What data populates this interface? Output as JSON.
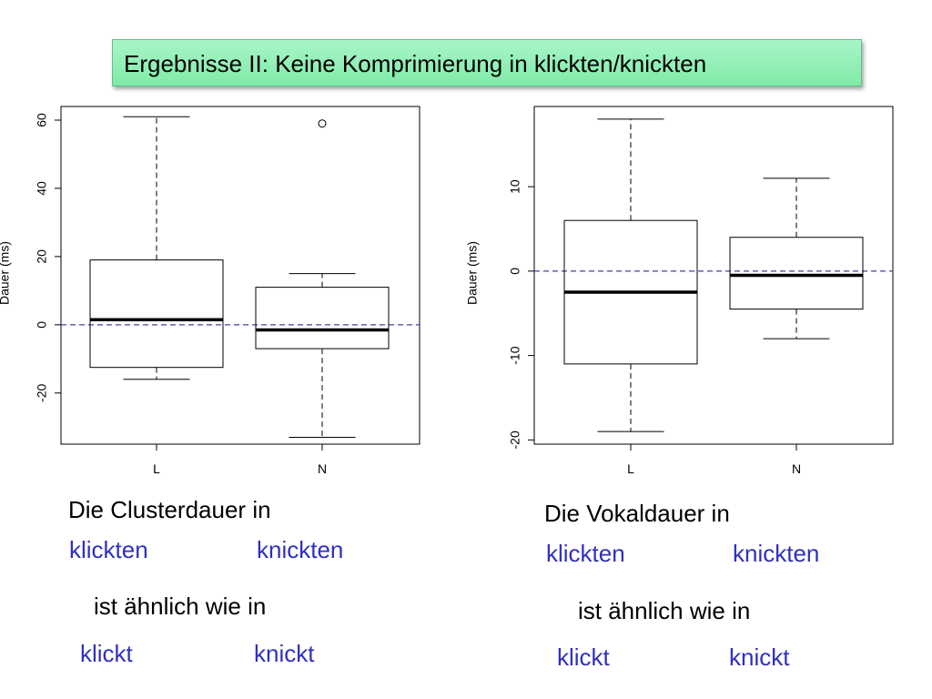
{
  "slide": {
    "title": "Ergebnisse II: Keine Komprimierung in klickten/knickten"
  },
  "colors": {
    "title_bg": "#90eeb0",
    "reference_line": "#4040a0",
    "caption_blue": "#3030c0"
  },
  "chart_data": [
    {
      "type": "box",
      "ylabel": "Dauer (ms)",
      "categories": [
        "L",
        "N"
      ],
      "ylim": [
        -35,
        64
      ],
      "yticks": [
        -20,
        0,
        20,
        40,
        60
      ],
      "reference_line": 0,
      "boxes": [
        {
          "name": "L",
          "whisker_low": -16,
          "q1": -12.5,
          "median": 1.5,
          "q3": 19,
          "whisker_high": 61,
          "outliers": []
        },
        {
          "name": "N",
          "whisker_low": -33,
          "q1": -7,
          "median": -1.5,
          "q3": 11,
          "whisker_high": 15,
          "outliers": [
            59
          ]
        }
      ]
    },
    {
      "type": "box",
      "ylabel": "Dauer (ms)",
      "categories": [
        "L",
        "N"
      ],
      "ylim": [
        -20.5,
        19.5
      ],
      "yticks": [
        -20,
        -10,
        0,
        10
      ],
      "reference_line": 0,
      "boxes": [
        {
          "name": "L",
          "whisker_low": -19,
          "q1": -11,
          "median": -2.5,
          "q3": 6,
          "whisker_high": 18,
          "outliers": []
        },
        {
          "name": "N",
          "whisker_low": -8,
          "q1": -4.5,
          "median": -0.5,
          "q3": 4,
          "whisker_high": 11,
          "outliers": []
        }
      ]
    }
  ],
  "captions": {
    "left": {
      "line1": "Die Clusterdauer in",
      "word_a": "klickten",
      "word_b": "knickten",
      "line2": "ist ähnlich wie in",
      "word_c": "klickt",
      "word_d": "knickt"
    },
    "right": {
      "line1": "Die Vokaldauer in",
      "word_a": "klickten",
      "word_b": "knickten",
      "line2": "ist ähnlich wie in",
      "word_c": "klickt",
      "word_d": "knickt"
    }
  }
}
